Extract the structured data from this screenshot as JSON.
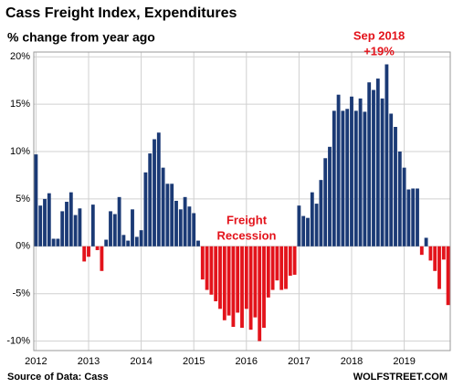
{
  "chart_data": {
    "type": "bar",
    "title": "Cass Freight Index, Expenditures",
    "subtitle": "% change from year ago",
    "source": "Source of Data: Cass",
    "credit": "WOLFSTREET.COM",
    "annotations": [
      {
        "lines": [
          "Sep 2018",
          "+19%"
        ]
      },
      {
        "lines": [
          "Freight",
          "Recession"
        ]
      }
    ],
    "categories": [
      "2012",
      null,
      null,
      null,
      null,
      null,
      null,
      null,
      null,
      null,
      null,
      null,
      "2013",
      null,
      null,
      null,
      null,
      null,
      null,
      null,
      null,
      null,
      null,
      null,
      "2014",
      null,
      null,
      null,
      null,
      null,
      null,
      null,
      null,
      null,
      null,
      null,
      "2015",
      null,
      null,
      null,
      null,
      null,
      null,
      null,
      null,
      null,
      null,
      null,
      "2016",
      null,
      null,
      null,
      null,
      null,
      null,
      null,
      null,
      null,
      null,
      null,
      "2017",
      null,
      null,
      null,
      null,
      null,
      null,
      null,
      null,
      null,
      null,
      null,
      "2018",
      null,
      null,
      null,
      null,
      null,
      null,
      null,
      null,
      null,
      null,
      null,
      "2019",
      null,
      null,
      null,
      null,
      null,
      null,
      null,
      null,
      null,
      null
    ],
    "values": [
      9.7,
      4.3,
      5.0,
      5.6,
      0.8,
      0.8,
      3.7,
      4.7,
      5.7,
      3.3,
      4.0,
      -1.6,
      -1.1,
      4.4,
      -0.4,
      -2.6,
      0.7,
      3.7,
      3.4,
      5.2,
      1.2,
      0.6,
      3.9,
      1.0,
      1.7,
      7.8,
      9.8,
      11.3,
      12.0,
      8.3,
      6.6,
      6.6,
      4.8,
      3.9,
      5.2,
      4.2,
      3.5,
      0.6,
      -3.5,
      -4.6,
      -5.1,
      -5.8,
      -6.6,
      -7.8,
      -7.3,
      -8.5,
      -7.0,
      -8.6,
      -6.6,
      -8.8,
      -7.5,
      -10.0,
      -8.6,
      -5.4,
      -4.6,
      -3.6,
      -4.6,
      -4.5,
      -3.1,
      -3.0,
      4.3,
      3.2,
      3.0,
      5.7,
      4.5,
      7.0,
      9.3,
      10.5,
      14.3,
      16.0,
      14.3,
      14.5,
      15.8,
      14.3,
      15.6,
      14.2,
      17.3,
      16.5,
      17.7,
      15.6,
      19.2,
      14.0,
      12.6,
      10.0,
      8.3,
      6.0,
      6.1,
      6.1,
      -0.9,
      0.9,
      -1.5,
      -2.6,
      -4.5,
      -1.4,
      -6.2
    ],
    "color_positive": "#1b3a75",
    "color_negative": "#e3131b",
    "ylim": [
      -11,
      20.5
    ],
    "yticks": [
      {
        "value": -10,
        "label": "-10%"
      },
      {
        "value": -5,
        "label": "-5%"
      },
      {
        "value": 0,
        "label": "0%"
      },
      {
        "value": 5,
        "label": "5%"
      },
      {
        "value": 10,
        "label": "10%"
      },
      {
        "value": 15,
        "label": "15%"
      },
      {
        "value": 20,
        "label": "20%"
      }
    ],
    "grid": true
  }
}
